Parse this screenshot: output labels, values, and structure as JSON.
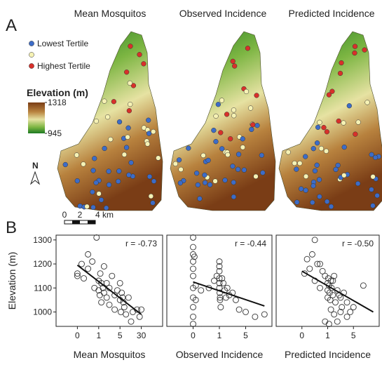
{
  "panel_a": {
    "label": "A",
    "titles": [
      "Mean Mosquitos",
      "Observed Incidence",
      "Predicted Incidence"
    ],
    "legend": [
      {
        "name": "Lowest Tertile",
        "color": "#3d6cc7"
      },
      {
        "name": null,
        "color": "#f6f2b4"
      },
      {
        "name": "Highest Tertile",
        "color": "#d8302a"
      }
    ],
    "colorbar": {
      "title": "Elevation (m)",
      "ticks": [
        1318,
        945
      ]
    },
    "north": "N",
    "scale_bar": [
      "0",
      "2",
      "4 km"
    ]
  },
  "panel_b_label": "B",
  "chart_data": [
    {
      "type": "scatter",
      "x_label": "Mean Mosquitos",
      "y_label": "Elevation (m)",
      "annotation": "r = -0.73",
      "x": [
        0,
        0,
        0.2,
        0.3,
        0.5,
        0.5,
        0.7,
        0.8,
        0.9,
        1,
        1,
        1.2,
        1.3,
        1.5,
        1.5,
        1.8,
        2,
        2,
        2.5,
        2.5,
        3,
        3,
        3.5,
        4,
        4,
        4.5,
        5,
        5,
        6,
        7,
        8,
        9,
        10,
        12,
        15,
        18,
        20,
        25,
        28,
        30
      ],
      "y": [
        1150,
        1160,
        1200,
        1140,
        1180,
        1240,
        1210,
        1100,
        1310,
        1130,
        1090,
        1070,
        1160,
        1120,
        1040,
        1100,
        1190,
        1080,
        1120,
        1060,
        1100,
        1030,
        1150,
        1070,
        1010,
        1090,
        1050,
        1120,
        1000,
        1080,
        1060,
        1040,
        1020,
        990,
        1060,
        960,
        1000,
        1010,
        980,
        1010
      ],
      "trendline": {
        "x": [
          0,
          30
        ],
        "y": [
          1195,
          990
        ]
      },
      "xlim": [
        -0.3,
        37
      ],
      "xticks": [
        0,
        1,
        5,
        30
      ],
      "ylim": [
        940,
        1320
      ],
      "yticks": [
        1000,
        1100,
        1200,
        1300
      ]
    },
    {
      "type": "scatter",
      "x_label": "Observed Incidence",
      "annotation": "r = -0.44",
      "x": [
        0,
        0,
        0,
        0,
        0,
        0,
        0,
        0,
        0,
        0,
        0,
        0.05,
        0.1,
        0.1,
        0.3,
        0.6,
        0.8,
        0.9,
        1,
        1,
        1,
        1,
        1,
        1,
        1.05,
        1.1,
        1.1,
        1.2,
        1.4,
        1.6,
        1.8,
        2,
        2.2,
        2.5,
        3,
        3.5,
        4,
        5,
        5.5,
        6
      ],
      "y": [
        1310,
        1270,
        1240,
        1210,
        1180,
        1150,
        1100,
        1060,
        1020,
        980,
        950,
        1230,
        1110,
        1050,
        1090,
        1100,
        1130,
        1150,
        1210,
        1190,
        1170,
        1140,
        1120,
        1100,
        1080,
        1060,
        1050,
        1020,
        1140,
        1120,
        1090,
        1060,
        1100,
        1070,
        1080,
        1050,
        1010,
        1000,
        980,
        990
      ],
      "trendline": {
        "x": [
          0,
          6
        ],
        "y": [
          1125,
          1025
        ]
      },
      "xlim": [
        -0.2,
        6.4
      ],
      "xticks": [
        0,
        1,
        5
      ],
      "ylim": [
        940,
        1320
      ]
    },
    {
      "type": "scatter",
      "x_label": "Predicted Incidence",
      "annotation": "r = -0.50",
      "x": [
        0.1,
        0.2,
        0.3,
        0.4,
        0.5,
        0.5,
        0.6,
        0.7,
        0.8,
        0.9,
        1,
        1,
        1,
        1.1,
        1.2,
        1.3,
        1.4,
        1.5,
        1.5,
        1.6,
        1.8,
        2,
        2,
        2.2,
        2.5,
        2.5,
        3,
        3,
        3.2,
        3.5,
        4,
        4,
        4.5,
        5,
        5.5,
        0.7,
        0.9,
        1.2,
        1.8,
        2.8
      ],
      "y": [
        1160,
        1220,
        1180,
        1240,
        1300,
        1130,
        1200,
        1100,
        1170,
        1150,
        1120,
        1090,
        1060,
        1140,
        1110,
        1080,
        1050,
        1130,
        1010,
        1100,
        1070,
        1150,
        990,
        1040,
        1090,
        960,
        1060,
        1000,
        1020,
        1080,
        980,
        1040,
        1000,
        1020,
        1110,
        1200,
        960,
        950,
        1130,
        1070
      ],
      "trendline": {
        "x": [
          0,
          6
        ],
        "y": [
          1170,
          1000
        ]
      },
      "xlim": [
        -0.3,
        6.3
      ],
      "xticks": [
        0,
        1,
        5
      ],
      "ylim": [
        940,
        1320
      ]
    }
  ]
}
